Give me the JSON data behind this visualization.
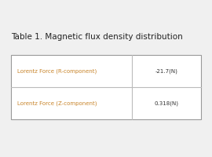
{
  "title": "Table 1. Magnetic flux density distribution",
  "title_fontsize": 7.5,
  "title_color": "#222222",
  "rows": [
    {
      "label": "Lorentz Force (R-component)",
      "value": "-21.7(N)",
      "label_color": "#c8842a",
      "value_color": "#333333"
    },
    {
      "label": "Lorentz Force (Z-component)",
      "value": "0.318(N)",
      "label_color": "#c8842a",
      "value_color": "#333333"
    }
  ],
  "background_color": "#f0f0f0",
  "table_bg": "#ffffff",
  "border_color": "#999999",
  "divider_color": "#bbbbbb",
  "row_divider_color": "#bbbbbb",
  "label_fontsize": 5.0,
  "value_fontsize": 5.0
}
